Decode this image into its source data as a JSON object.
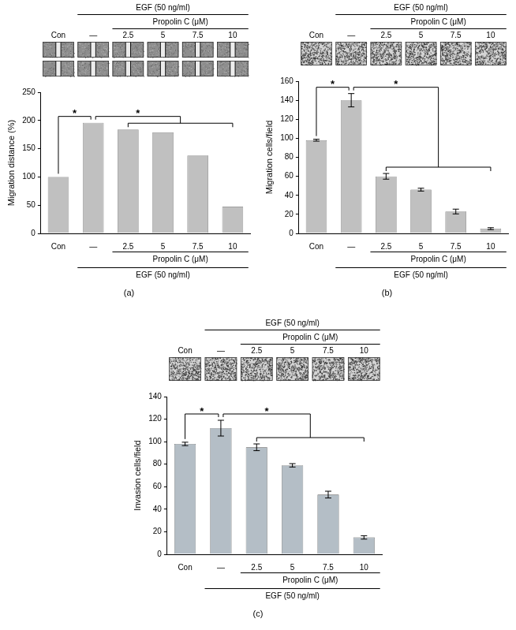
{
  "chart_data": [
    {
      "type": "bar",
      "categories": [
        "Con",
        "—",
        "2.5",
        "5",
        "7.5",
        "10"
      ],
      "values": [
        100,
        196,
        184,
        179,
        138,
        47
      ],
      "color": "#c0c0c0",
      "ylabel": "Migration distance (%)",
      "ylim": [
        0,
        250
      ],
      "yticks": [
        0,
        50,
        100,
        150,
        200,
        250
      ],
      "grid": false,
      "annotations": {
        "panel": "(a)",
        "header": "EGF (50 ng/ml)",
        "subheader": "Propolin C (μM)",
        "significance": [
          {
            "from": "Con",
            "to": "—",
            "label": "*"
          },
          {
            "from": "—",
            "to": [
              "2.5",
              "10"
            ],
            "label": "*"
          }
        ]
      }
    },
    {
      "type": "bar",
      "categories": [
        "Con",
        "—",
        "2.5",
        "5",
        "7.5",
        "10"
      ],
      "values": [
        98,
        140,
        60,
        46,
        23,
        5
      ],
      "errors": [
        1,
        7,
        3,
        1.5,
        2.5,
        1
      ],
      "color": "#c0c0c0",
      "ylabel": "Migration cells/field",
      "ylim": [
        0,
        160
      ],
      "yticks": [
        0,
        20,
        40,
        60,
        80,
        100,
        120,
        140,
        160
      ],
      "grid": false,
      "annotations": {
        "panel": "(b)",
        "header": "EGF (50 ng/ml)",
        "subheader": "Propolin C (μM)",
        "significance": [
          {
            "from": "Con",
            "to": "—",
            "label": "*"
          },
          {
            "from": "—",
            "to": [
              "2.5",
              "10"
            ],
            "label": "*"
          }
        ]
      }
    },
    {
      "type": "bar",
      "categories": [
        "Con",
        "—",
        "2.5",
        "5",
        "7.5",
        "10"
      ],
      "values": [
        98,
        112,
        95,
        79,
        53,
        15
      ],
      "errors": [
        1.5,
        7,
        3,
        1.5,
        3,
        1.5
      ],
      "color": "#b4bec6",
      "ylabel": "Invasion cells/field",
      "ylim": [
        0,
        140
      ],
      "yticks": [
        0,
        20,
        40,
        60,
        80,
        100,
        120,
        140
      ],
      "grid": false,
      "annotations": {
        "panel": "(c)",
        "header": "EGF (50 ng/ml)",
        "subheader": "Propolin C (μM)",
        "significance": [
          {
            "from": "Con",
            "to": "—",
            "label": "*"
          },
          {
            "from": "—",
            "to": [
              "2.5",
              "10"
            ],
            "label": "*"
          }
        ]
      }
    }
  ]
}
